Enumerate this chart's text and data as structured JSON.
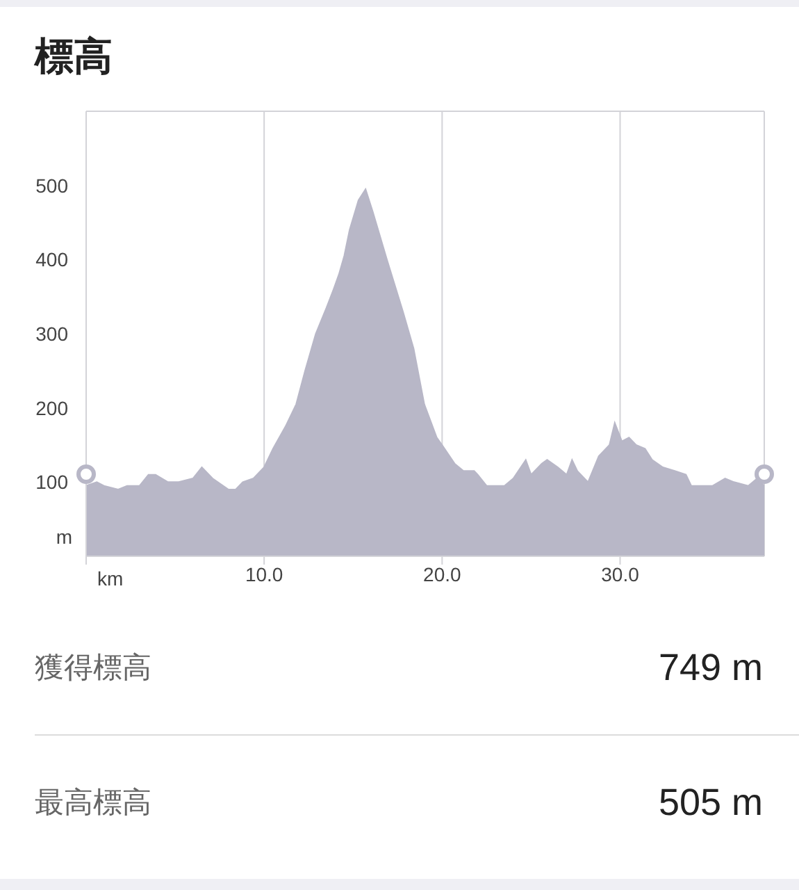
{
  "chart_data": {
    "type": "area",
    "title": "標高",
    "xlabel": "km",
    "ylabel": "m",
    "x": [
      0,
      0.6,
      1.0,
      1.8,
      2.3,
      3.0,
      3.5,
      3.9,
      4.6,
      5.2,
      6.0,
      6.5,
      7.1,
      8.0,
      8.4,
      8.8,
      9.4,
      10.0,
      10.5,
      11.2,
      11.8,
      12.3,
      12.9,
      13.5,
      13.9,
      14.2,
      14.5,
      14.8,
      15.3,
      15.7,
      16.1,
      16.9,
      17.8,
      18.4,
      19.0,
      19.7,
      20.0,
      20.7,
      21.2,
      21.8,
      22.0,
      22.5,
      23.1,
      23.5,
      24.0,
      24.7,
      25.0,
      25.6,
      25.9,
      26.5,
      27.0,
      27.3,
      27.6,
      28.2,
      28.8,
      29.4,
      29.7,
      30.1,
      30.5,
      30.9,
      31.4,
      31.8,
      32.4,
      33.1,
      33.7,
      34.0,
      34.8,
      35.2,
      35.9,
      36.4,
      37.2,
      37.7,
      38.1
    ],
    "values": [
      95,
      100,
      95,
      90,
      95,
      95,
      110,
      110,
      100,
      100,
      105,
      120,
      105,
      90,
      90,
      100,
      105,
      120,
      145,
      175,
      205,
      250,
      300,
      335,
      360,
      380,
      405,
      440,
      480,
      495,
      465,
      400,
      330,
      280,
      205,
      160,
      150,
      125,
      115,
      115,
      110,
      95,
      95,
      95,
      105,
      130,
      110,
      125,
      130,
      120,
      110,
      130,
      115,
      100,
      135,
      150,
      180,
      155,
      160,
      150,
      145,
      130,
      120,
      115,
      110,
      95,
      95,
      95,
      105,
      100,
      95,
      105,
      95
    ],
    "color": "#b8b7c7",
    "xlim": [
      0,
      38.1
    ],
    "xticks": [
      {
        "value": 0,
        "label": null
      },
      {
        "value": 10,
        "label": "10.0"
      },
      {
        "value": 20,
        "label": "20.0"
      },
      {
        "value": 30,
        "label": "30.0"
      }
    ],
    "ylim": [
      0,
      600
    ],
    "yticks": [
      {
        "value": 0,
        "label": null
      },
      100,
      200,
      300,
      400,
      500,
      {
        "value": 600,
        "label": null
      }
    ],
    "grid": true,
    "annotations": [
      "獲得標高",
      "749 m",
      "最高標高",
      "505 m"
    ]
  }
}
